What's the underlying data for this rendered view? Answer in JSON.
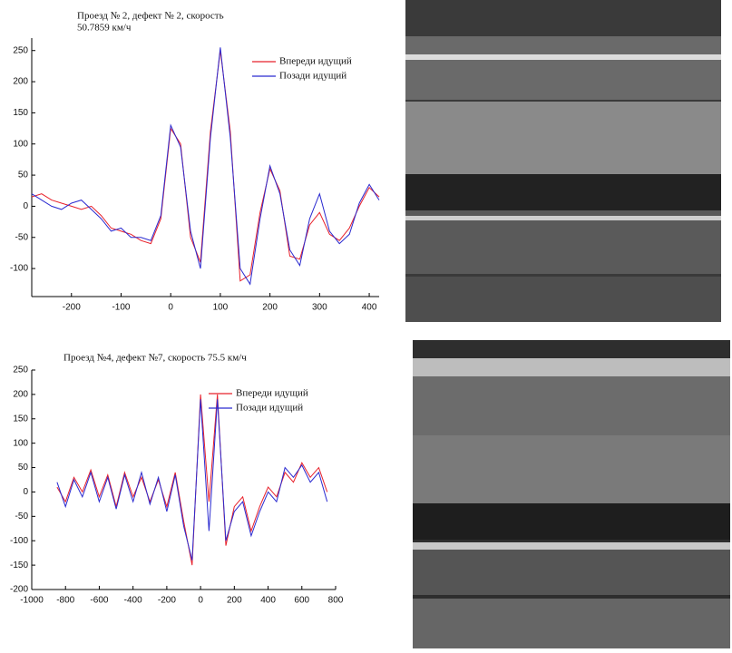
{
  "chart_data": [
    {
      "type": "line",
      "title": [
        "Проезд № 2, дефект № 2, скорость",
        "50.7859 км/ч"
      ],
      "x": [
        -280,
        -260,
        -240,
        -220,
        -200,
        -180,
        -160,
        -140,
        -120,
        -100,
        -80,
        -60,
        -40,
        -20,
        0,
        20,
        40,
        60,
        80,
        100,
        120,
        140,
        160,
        180,
        200,
        220,
        240,
        260,
        280,
        300,
        320,
        340,
        360,
        380,
        400,
        420
      ],
      "series": [
        {
          "name": "Впереди идущий",
          "color": "#e8202a",
          "values": [
            15,
            20,
            10,
            5,
            0,
            -5,
            0,
            -15,
            -35,
            -40,
            -45,
            -55,
            -60,
            -20,
            125,
            100,
            -50,
            -90,
            120,
            250,
            120,
            -120,
            -110,
            -10,
            60,
            25,
            -80,
            -85,
            -30,
            -10,
            -45,
            -55,
            -35,
            0,
            30,
            15
          ]
        },
        {
          "name": "Позади идущий",
          "color": "#2a2ad0",
          "values": [
            20,
            10,
            0,
            -5,
            5,
            10,
            -5,
            -20,
            -40,
            -35,
            -50,
            -50,
            -55,
            -15,
            130,
            95,
            -40,
            -100,
            110,
            255,
            110,
            -100,
            -125,
            -20,
            65,
            20,
            -70,
            -95,
            -20,
            20,
            -40,
            -60,
            -45,
            5,
            35,
            10
          ]
        }
      ],
      "xlim": [
        -280,
        420
      ],
      "ylim": [
        -145,
        270
      ],
      "xticks": [
        -200,
        -100,
        0,
        100,
        200,
        300,
        400
      ],
      "yticks": [
        -100,
        -50,
        0,
        50,
        100,
        150,
        200,
        250
      ]
    },
    {
      "type": "line",
      "title": [
        "Проезд №4, дефект №7, скорость 75.5 км/ч"
      ],
      "x": [
        -850,
        -800,
        -750,
        -700,
        -650,
        -600,
        -550,
        -500,
        -450,
        -400,
        -350,
        -300,
        -250,
        -200,
        -150,
        -100,
        -50,
        0,
        50,
        100,
        150,
        200,
        250,
        300,
        350,
        400,
        450,
        500,
        550,
        600,
        650,
        700,
        750
      ],
      "series": [
        {
          "name": "Впереди идущий",
          "color": "#e8202a",
          "values": [
            10,
            -20,
            30,
            0,
            45,
            -10,
            35,
            -30,
            40,
            -10,
            30,
            -20,
            25,
            -30,
            40,
            -60,
            -150,
            200,
            -20,
            200,
            -110,
            -30,
            -10,
            -80,
            -30,
            10,
            -10,
            40,
            20,
            60,
            30,
            50,
            0
          ]
        },
        {
          "name": "Позади идущий",
          "color": "#2a2ad0",
          "values": [
            20,
            -30,
            25,
            -10,
            40,
            -20,
            30,
            -35,
            35,
            -20,
            40,
            -25,
            30,
            -40,
            35,
            -70,
            -140,
            190,
            -80,
            190,
            -100,
            -40,
            -20,
            -90,
            -40,
            0,
            -20,
            50,
            30,
            55,
            20,
            40,
            -20
          ]
        }
      ],
      "xlim": [
        -1000,
        800
      ],
      "ylim": [
        -200,
        250
      ],
      "xticks": [
        -1000,
        -800,
        -600,
        -400,
        -200,
        0,
        200,
        400,
        600,
        800
      ],
      "yticks": [
        -200,
        -150,
        -100,
        -50,
        0,
        50,
        100,
        150,
        200,
        250
      ]
    }
  ]
}
